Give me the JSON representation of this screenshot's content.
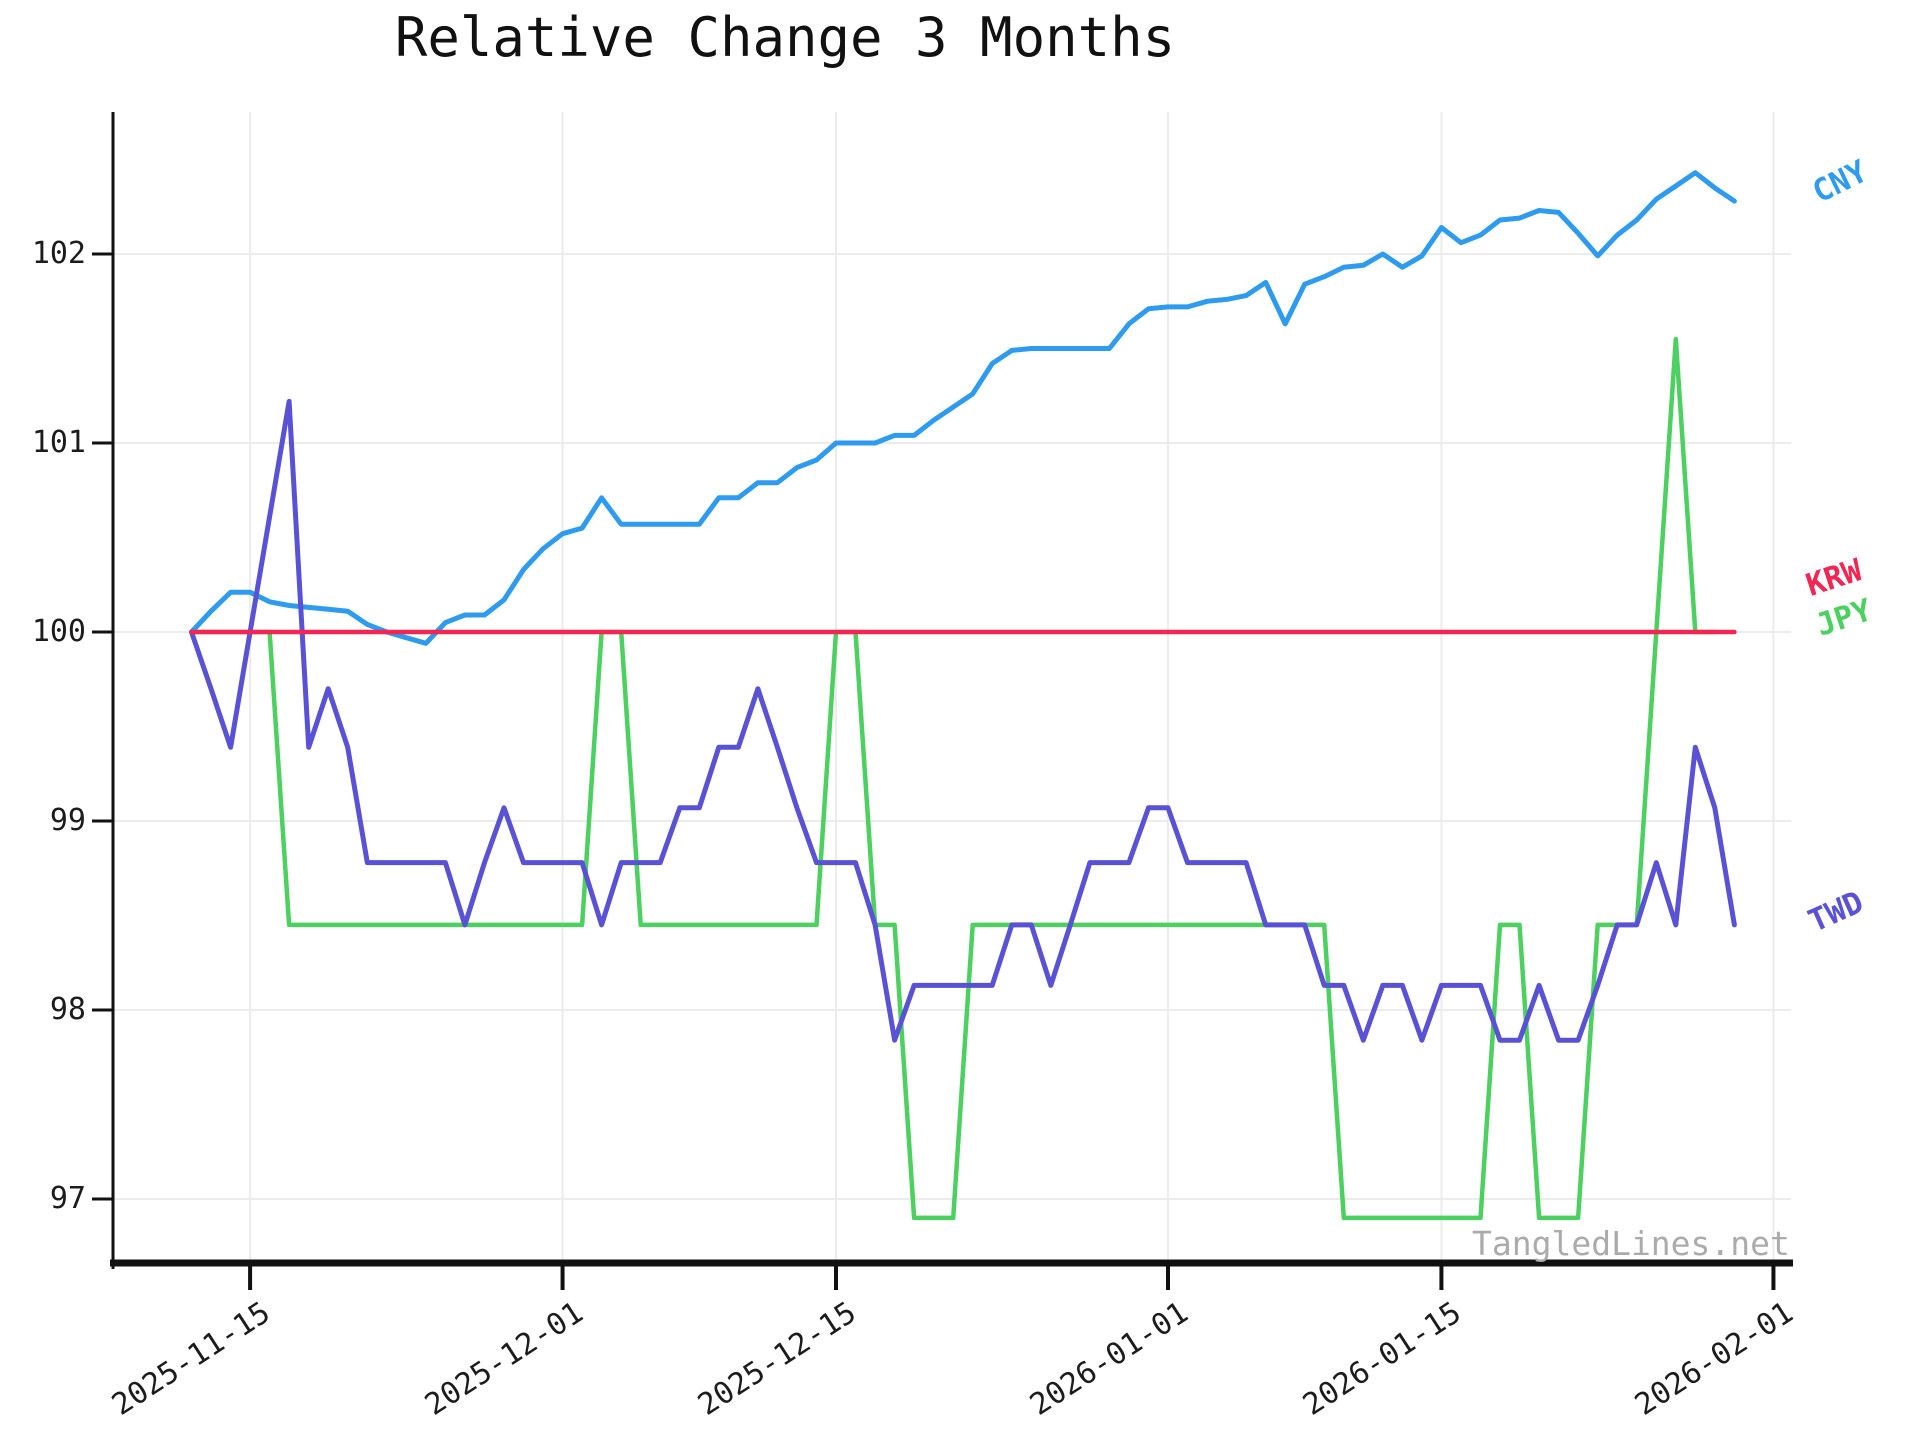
{
  "chart_data": {
    "type": "line",
    "title": "Relative Change 3 Months",
    "grid": true,
    "baseline_value": 100,
    "legend_position": "inline labels in right margin",
    "watermark_text": "TangledLines.net",
    "x_axis": {
      "start_date": "2025-11-12",
      "frequency": "daily",
      "tick_labels": [
        "2025-11-15",
        "2025-12-01",
        "2025-12-15",
        "2026-01-01",
        "2026-01-15",
        "2026-02-01"
      ]
    },
    "y_axis": {
      "tick_labels": [
        "97",
        "98",
        "99",
        "100",
        "101",
        "102"
      ],
      "ylim": [
        96.65,
        102.75
      ]
    },
    "series": [
      {
        "name": "CNY",
        "color": "#2E9BEF",
        "end_date": "2026-01-30",
        "values": [
          100.0,
          100.11,
          100.21,
          100.21,
          100.16,
          100.14,
          100.13,
          100.12,
          100.11,
          100.04,
          100.0,
          99.97,
          99.94,
          100.05,
          100.09,
          100.09,
          100.17,
          100.33,
          100.44,
          100.52,
          100.55,
          100.71,
          100.57,
          100.57,
          100.57,
          100.57,
          100.57,
          100.71,
          100.71,
          100.79,
          100.79,
          100.87,
          100.91,
          101.0,
          101.0,
          101.0,
          101.04,
          101.04,
          101.12,
          101.19,
          101.26,
          101.42,
          101.49,
          101.5,
          101.5,
          101.5,
          101.5,
          101.5,
          101.63,
          101.71,
          101.72,
          101.72,
          101.75,
          101.76,
          101.78,
          101.85,
          101.63,
          101.84,
          101.88,
          101.93,
          101.94,
          102.0,
          101.93,
          101.99,
          102.14,
          102.06,
          102.1,
          102.18,
          102.19,
          102.23,
          102.22,
          102.11,
          101.99,
          102.1,
          102.18,
          102.29,
          102.36,
          102.43,
          102.35,
          102.28
        ]
      },
      {
        "name": "KRW",
        "color": "#F22553",
        "end_date": "2026-01-30",
        "values": [
          100.0,
          100.0,
          100.0,
          100.0,
          100.0,
          100.0,
          100.0,
          100.0,
          100.0,
          100.0,
          100.0,
          100.0,
          100.0,
          100.0,
          100.0,
          100.0,
          100.0,
          100.0,
          100.0,
          100.0,
          100.0,
          100.0,
          100.0,
          100.0,
          100.0,
          100.0,
          100.0,
          100.0,
          100.0,
          100.0,
          100.0,
          100.0,
          100.0,
          100.0,
          100.0,
          100.0,
          100.0,
          100.0,
          100.0,
          100.0,
          100.0,
          100.0,
          100.0,
          100.0,
          100.0,
          100.0,
          100.0,
          100.0,
          100.0,
          100.0,
          100.0,
          100.0,
          100.0,
          100.0,
          100.0,
          100.0,
          100.0,
          100.0,
          100.0,
          100.0,
          100.0,
          100.0,
          100.0,
          100.0,
          100.0,
          100.0,
          100.0,
          100.0,
          100.0,
          100.0,
          100.0,
          100.0,
          100.0,
          100.0,
          100.0,
          100.0,
          100.0,
          100.0,
          100.0,
          100.0
        ]
      },
      {
        "name": "JPY",
        "color": "#4CD05F",
        "end_date": "2026-01-29",
        "values": [
          100.0,
          100.0,
          100.0,
          100.0,
          100.0,
          98.45,
          98.45,
          98.45,
          98.45,
          98.45,
          98.45,
          98.45,
          98.45,
          98.45,
          98.45,
          98.45,
          98.45,
          98.45,
          98.45,
          98.45,
          98.45,
          100.0,
          100.0,
          98.45,
          98.45,
          98.45,
          98.45,
          98.45,
          98.45,
          98.45,
          98.45,
          98.45,
          98.45,
          100.0,
          100.0,
          98.45,
          98.45,
          96.9,
          96.9,
          96.9,
          98.45,
          98.45,
          98.45,
          98.45,
          98.45,
          98.45,
          98.45,
          98.45,
          98.45,
          98.45,
          98.45,
          98.45,
          98.45,
          98.45,
          98.45,
          98.45,
          98.45,
          98.45,
          98.45,
          96.9,
          96.9,
          96.9,
          96.9,
          96.9,
          96.9,
          96.9,
          96.9,
          98.45,
          98.45,
          96.9,
          96.9,
          96.9,
          98.45,
          98.45,
          98.45,
          100.0,
          101.55,
          100.0,
          100.0
        ]
      },
      {
        "name": "TWD",
        "color": "#5A52D5",
        "end_date": "2026-01-30",
        "values": [
          100.0,
          99.7,
          99.39,
          100.0,
          100.61,
          101.22,
          99.39,
          99.7,
          99.39,
          98.78,
          98.78,
          98.78,
          98.78,
          98.78,
          98.45,
          98.78,
          99.07,
          98.78,
          98.78,
          98.78,
          98.78,
          98.45,
          98.78,
          98.78,
          98.78,
          99.07,
          99.07,
          99.39,
          99.39,
          99.7,
          99.39,
          99.07,
          98.78,
          98.78,
          98.78,
          98.45,
          97.84,
          98.13,
          98.13,
          98.13,
          98.13,
          98.13,
          98.45,
          98.45,
          98.13,
          98.45,
          98.78,
          98.78,
          98.78,
          99.07,
          99.07,
          98.78,
          98.78,
          98.78,
          98.78,
          98.45,
          98.45,
          98.45,
          98.13,
          98.13,
          97.84,
          98.13,
          98.13,
          97.84,
          98.13,
          98.13,
          98.13,
          97.84,
          97.84,
          98.13,
          97.84,
          97.84,
          98.13,
          98.45,
          98.45,
          98.78,
          98.45,
          99.39,
          99.07,
          98.45
        ]
      }
    ]
  }
}
